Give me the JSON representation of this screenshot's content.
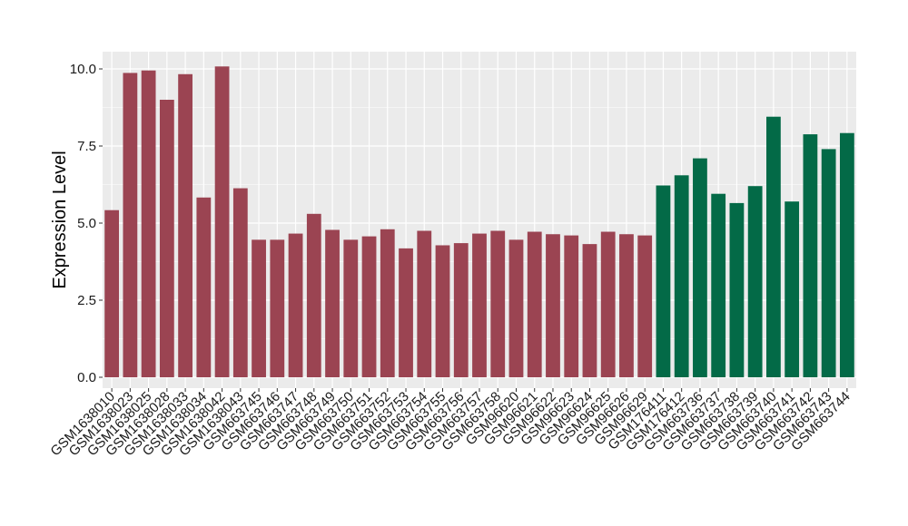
{
  "chart_data": {
    "type": "bar",
    "ylabel": "Expression Level",
    "xlabel": "",
    "ylim": [
      0,
      10.3
    ],
    "yticks": [
      0.0,
      2.5,
      5.0,
      7.5,
      10.0
    ],
    "ytick_labels": [
      "0.0",
      "2.5",
      "5.0",
      "7.5",
      "10.0"
    ],
    "grid": true,
    "legend": "none",
    "colors": {
      "group1": "#9b4452",
      "group2": "#036a47",
      "panel": "#ebebeb",
      "grid": "#ffffff"
    },
    "categories": [
      "GSM1638010",
      "GSM1638023",
      "GSM1638025",
      "GSM1638028",
      "GSM1638033",
      "GSM1638034",
      "GSM1638042",
      "GSM1638043",
      "GSM663745",
      "GSM663746",
      "GSM663747",
      "GSM663748",
      "GSM663749",
      "GSM663750",
      "GSM663751",
      "GSM663752",
      "GSM663753",
      "GSM663754",
      "GSM663755",
      "GSM663756",
      "GSM663757",
      "GSM663758",
      "GSM96620",
      "GSM96621",
      "GSM96622",
      "GSM96623",
      "GSM96624",
      "GSM96625",
      "GSM96626",
      "GSM96629",
      "GSM176411",
      "GSM176412",
      "GSM663736",
      "GSM663737",
      "GSM663738",
      "GSM663739",
      "GSM663740",
      "GSM663741",
      "GSM663742",
      "GSM663743",
      "GSM663744"
    ],
    "values": [
      5.42,
      9.87,
      9.95,
      9.0,
      9.83,
      5.83,
      10.08,
      6.13,
      4.46,
      4.46,
      4.66,
      5.3,
      4.78,
      4.46,
      4.57,
      4.8,
      4.18,
      4.75,
      4.28,
      4.35,
      4.66,
      4.75,
      4.46,
      4.72,
      4.64,
      4.6,
      4.32,
      4.72,
      4.64,
      4.6,
      6.22,
      6.55,
      7.1,
      5.95,
      5.65,
      6.2,
      8.45,
      5.7,
      7.88,
      7.4,
      7.92
    ],
    "groups": [
      1,
      1,
      1,
      1,
      1,
      1,
      1,
      1,
      1,
      1,
      1,
      1,
      1,
      1,
      1,
      1,
      1,
      1,
      1,
      1,
      1,
      1,
      1,
      1,
      1,
      1,
      1,
      1,
      1,
      1,
      2,
      2,
      2,
      2,
      2,
      2,
      2,
      2,
      2,
      2,
      2
    ]
  }
}
